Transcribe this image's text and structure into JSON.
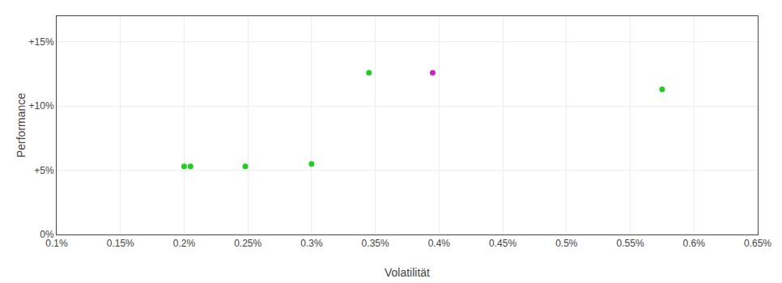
{
  "chart_data": {
    "type": "scatter",
    "xlabel": "Volatilität",
    "ylabel": "Performance",
    "xlim": [
      0.001,
      0.0065
    ],
    "ylim": [
      0.0,
      0.17
    ],
    "xticks": [
      {
        "value": 0.001,
        "label": "0.1%"
      },
      {
        "value": 0.0015,
        "label": "0.15%"
      },
      {
        "value": 0.002,
        "label": "0.2%"
      },
      {
        "value": 0.0025,
        "label": "0.25%"
      },
      {
        "value": 0.003,
        "label": "0.3%"
      },
      {
        "value": 0.0035,
        "label": "0.35%"
      },
      {
        "value": 0.004,
        "label": "0.4%"
      },
      {
        "value": 0.0045,
        "label": "0.45%"
      },
      {
        "value": 0.005,
        "label": "0.5%"
      },
      {
        "value": 0.0055,
        "label": "0.55%"
      },
      {
        "value": 0.006,
        "label": "0.6%"
      },
      {
        "value": 0.0065,
        "label": "0.65%"
      }
    ],
    "yticks": [
      {
        "value": 0.0,
        "label": "0%"
      },
      {
        "value": 0.05,
        "label": "+5%"
      },
      {
        "value": 0.1,
        "label": "+10%"
      },
      {
        "value": 0.15,
        "label": "+15%"
      }
    ],
    "grid": true,
    "series": [
      {
        "color": "#22cc22",
        "x": [
          0.002,
          0.00205,
          0.00248,
          0.003,
          0.00345,
          0.00575
        ],
        "values": [
          0.053,
          0.053,
          0.053,
          0.055,
          0.126,
          0.113
        ]
      },
      {
        "color": "#cc22cc",
        "x": [
          0.00395
        ],
        "values": [
          0.126
        ]
      }
    ]
  }
}
